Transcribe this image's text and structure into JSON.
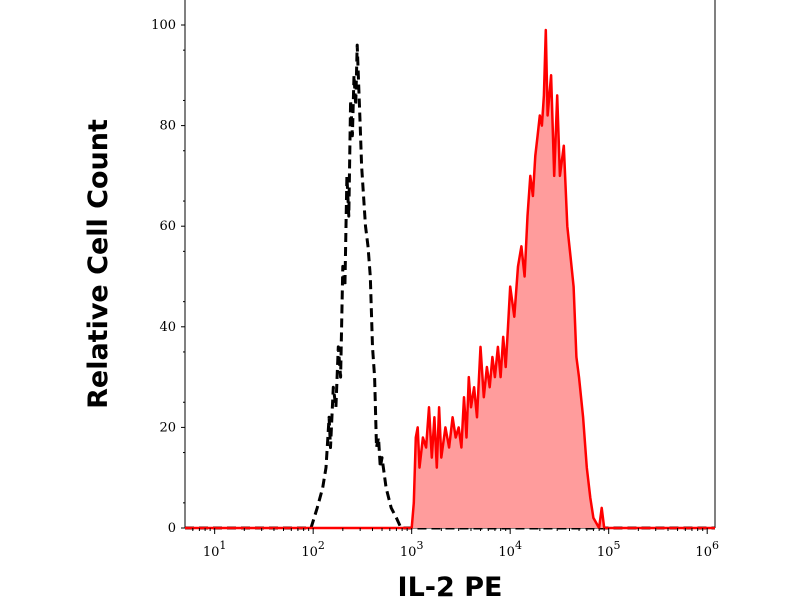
{
  "chart_data": {
    "type": "area",
    "title": "",
    "xlabel": "IL-2 PE",
    "ylabel": "Relative Cell Count",
    "x_scale": "log",
    "xlim": [
      5,
      1200000
    ],
    "ylim": [
      0,
      100
    ],
    "x_ticks": [
      {
        "value": 10,
        "base": "10",
        "exp": "1"
      },
      {
        "value": 100,
        "base": "10",
        "exp": "2"
      },
      {
        "value": 1000,
        "base": "10",
        "exp": "3"
      },
      {
        "value": 10000,
        "base": "10",
        "exp": "4"
      },
      {
        "value": 100000,
        "base": "10",
        "exp": "5"
      },
      {
        "value": 1000000,
        "base": "10",
        "exp": "6"
      }
    ],
    "y_ticks": [
      {
        "value": 0,
        "label": "0"
      },
      {
        "value": 20,
        "label": "20"
      },
      {
        "value": 40,
        "label": "40"
      },
      {
        "value": 60,
        "label": "60"
      },
      {
        "value": 80,
        "label": "80"
      },
      {
        "value": 100,
        "label": "100"
      }
    ],
    "grid": false,
    "legend": "none",
    "series": [
      {
        "style": "dashed-line",
        "color": "#000000",
        "filled": false,
        "points": [
          [
            5,
            0
          ],
          [
            95,
            0
          ],
          [
            110,
            4
          ],
          [
            125,
            8
          ],
          [
            135,
            12
          ],
          [
            145,
            22
          ],
          [
            150,
            16
          ],
          [
            160,
            28
          ],
          [
            170,
            24
          ],
          [
            180,
            36
          ],
          [
            190,
            30
          ],
          [
            200,
            52
          ],
          [
            210,
            48
          ],
          [
            220,
            70
          ],
          [
            230,
            62
          ],
          [
            240,
            85
          ],
          [
            250,
            78
          ],
          [
            260,
            90
          ],
          [
            270,
            84
          ],
          [
            280,
            96
          ],
          [
            290,
            88
          ],
          [
            300,
            80
          ],
          [
            310,
            72
          ],
          [
            320,
            68
          ],
          [
            340,
            60
          ],
          [
            360,
            56
          ],
          [
            380,
            50
          ],
          [
            400,
            36
          ],
          [
            420,
            30
          ],
          [
            440,
            16
          ],
          [
            460,
            18
          ],
          [
            480,
            12
          ],
          [
            500,
            14
          ],
          [
            550,
            8
          ],
          [
            620,
            4
          ],
          [
            700,
            2
          ],
          [
            780,
            0
          ],
          [
            1200000,
            0
          ]
        ]
      },
      {
        "style": "solid-line",
        "color": "#ff0000",
        "fill": "#ff9c9c",
        "filled": true,
        "points": [
          [
            5,
            0
          ],
          [
            1000,
            0
          ],
          [
            1050,
            5
          ],
          [
            1100,
            18
          ],
          [
            1150,
            20
          ],
          [
            1200,
            12
          ],
          [
            1300,
            18
          ],
          [
            1400,
            16
          ],
          [
            1500,
            24
          ],
          [
            1600,
            14
          ],
          [
            1700,
            22
          ],
          [
            1800,
            12
          ],
          [
            1900,
            24
          ],
          [
            2000,
            14
          ],
          [
            2200,
            20
          ],
          [
            2400,
            16
          ],
          [
            2600,
            22
          ],
          [
            2800,
            18
          ],
          [
            3000,
            20
          ],
          [
            3200,
            16
          ],
          [
            3400,
            26
          ],
          [
            3600,
            18
          ],
          [
            3800,
            30
          ],
          [
            4000,
            24
          ],
          [
            4300,
            28
          ],
          [
            4600,
            22
          ],
          [
            5000,
            36
          ],
          [
            5400,
            26
          ],
          [
            5800,
            32
          ],
          [
            6200,
            28
          ],
          [
            6600,
            34
          ],
          [
            7000,
            30
          ],
          [
            7500,
            36
          ],
          [
            8000,
            30
          ],
          [
            8500,
            38
          ],
          [
            9000,
            32
          ],
          [
            9500,
            40
          ],
          [
            10000,
            48
          ],
          [
            11000,
            42
          ],
          [
            12000,
            52
          ],
          [
            13000,
            56
          ],
          [
            14000,
            50
          ],
          [
            15000,
            62
          ],
          [
            16000,
            70
          ],
          [
            17000,
            66
          ],
          [
            18000,
            74
          ],
          [
            19000,
            78
          ],
          [
            20000,
            82
          ],
          [
            21000,
            80
          ],
          [
            22000,
            86
          ],
          [
            23000,
            99
          ],
          [
            24000,
            82
          ],
          [
            26000,
            90
          ],
          [
            28000,
            70
          ],
          [
            30000,
            86
          ],
          [
            32000,
            70
          ],
          [
            35000,
            76
          ],
          [
            38000,
            60
          ],
          [
            41000,
            54
          ],
          [
            44000,
            48
          ],
          [
            47000,
            34
          ],
          [
            50000,
            30
          ],
          [
            55000,
            22
          ],
          [
            60000,
            12
          ],
          [
            65000,
            6
          ],
          [
            70000,
            2
          ],
          [
            80000,
            0
          ],
          [
            85000,
            4
          ],
          [
            90000,
            0
          ],
          [
            1200000,
            0
          ]
        ]
      }
    ]
  }
}
